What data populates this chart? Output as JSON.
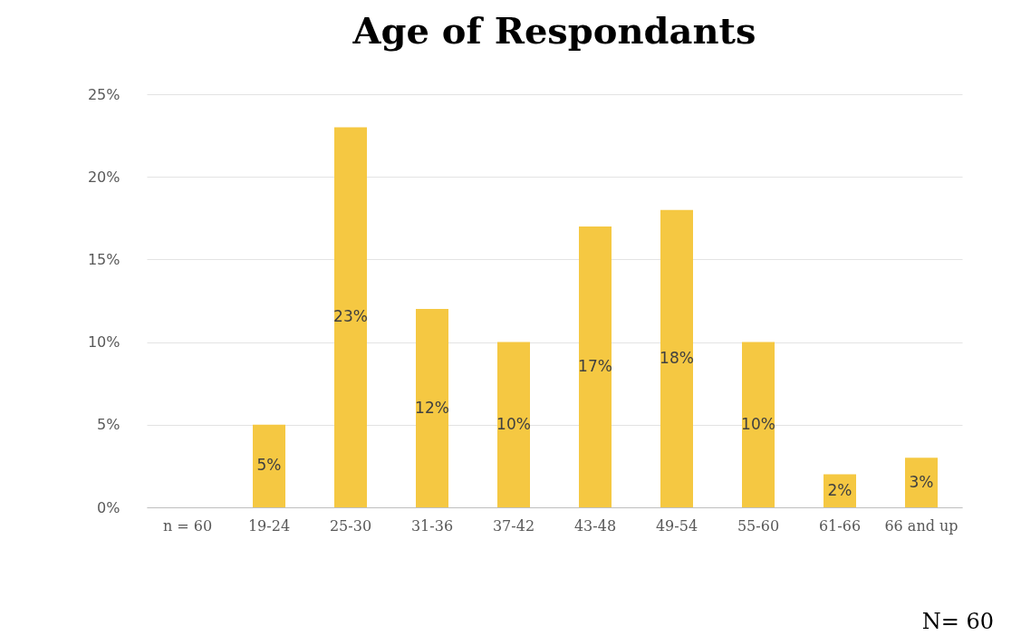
{
  "chart_data": {
    "type": "bar",
    "title": "Age of Respondants",
    "categories": [
      "n = 60",
      "19-24",
      "25-30",
      "31-36",
      "37-42",
      "43-48",
      "49-54",
      "55-60",
      "61-66",
      "66 and up"
    ],
    "values": [
      null,
      5,
      23,
      12,
      10,
      17,
      18,
      10,
      2,
      3
    ],
    "value_labels": [
      null,
      "5%",
      "23%",
      "12%",
      "10%",
      "17%",
      "18%",
      "10%",
      "2%",
      "3%"
    ],
    "color": "#f5c842",
    "ylim": [
      0,
      25
    ],
    "yticks": [
      {
        "value": 0,
        "label": "0%"
      },
      {
        "value": 5,
        "label": "5%"
      },
      {
        "value": 10,
        "label": "10%"
      },
      {
        "value": 15,
        "label": "15%"
      },
      {
        "value": 20,
        "label": "20%"
      },
      {
        "value": 25,
        "label": "25%"
      }
    ],
    "grid": "y",
    "annotations": [
      "N= 60"
    ]
  }
}
